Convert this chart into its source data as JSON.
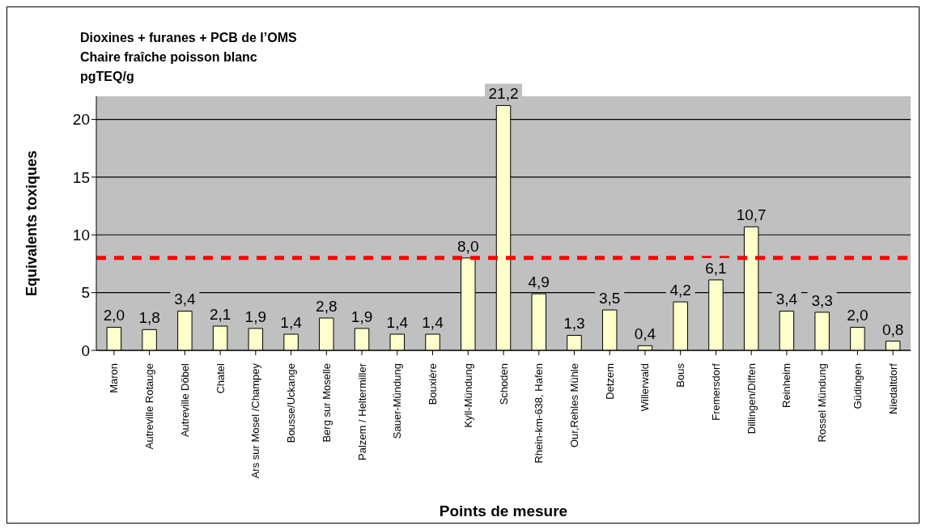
{
  "chart_data": {
    "type": "bar",
    "title": "Dioxines + furanes + PCB de l’OMS",
    "subtitle": "Chaire fraîche poisson blanc\npgTEQ/g",
    "xlabel": "Points de mesure",
    "ylabel": "Equivalents  toxiques",
    "categories": [
      "Maron",
      "Autreville Rotauge",
      "Autreville Döbel",
      "Chatel",
      "Ars sur Mosel /Champey",
      "Bousse/Uckange",
      "Berg sur Moselle",
      "Palzem / Heltermiller",
      "Sauer-Mündung",
      "Bouxière",
      "Kyll-Mündung",
      "Schoden",
      "Rhein-km-638, Hafen",
      "Our,Rehles Mühle",
      "Detzem",
      "Willerwald",
      "Bous",
      "Fremersdorf",
      "Dillingen/Diffen",
      "Reinheim",
      "Rossel Mündung",
      "Güdingen",
      "Niedaltdorf"
    ],
    "values": [
      2.0,
      1.8,
      3.4,
      2.1,
      1.9,
      1.4,
      2.8,
      1.9,
      1.4,
      1.4,
      8.0,
      21.2,
      4.9,
      1.3,
      3.5,
      0.4,
      4.2,
      6.1,
      10.7,
      3.4,
      3.3,
      2.0,
      0.8
    ],
    "value_labels": [
      "2,0",
      "1,8",
      "3,4",
      "2,1",
      "1,9",
      "1,4",
      "2,8",
      "1,9",
      "1,4",
      "1,4",
      "8,0",
      "21,2",
      "4,9",
      "1,3",
      "3,5",
      "0,4",
      "4,2",
      "6,1",
      "10,7",
      "3,4",
      "3,3",
      "2,0",
      "0,8"
    ],
    "color": "#ffffcc",
    "ylim": [
      0,
      22
    ],
    "yticks": [
      0,
      5,
      10,
      15,
      20
    ],
    "grid": "y",
    "ref_lines": [
      {
        "axis": "y",
        "value": 8,
        "color": "#ff0000",
        "line_style": "dashed"
      }
    ]
  }
}
